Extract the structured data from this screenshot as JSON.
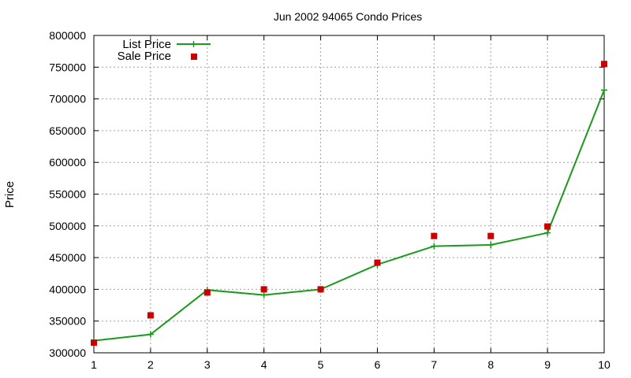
{
  "chart_data": {
    "type": "line",
    "title": "Jun 2002 94065 Condo Prices",
    "xlabel": "",
    "ylabel": "Price",
    "xlim": [
      1,
      10
    ],
    "ylim": [
      300000,
      800000
    ],
    "x_ticks": [
      1,
      2,
      3,
      4,
      5,
      6,
      7,
      8,
      9,
      10
    ],
    "y_ticks": [
      300000,
      350000,
      400000,
      450000,
      500000,
      550000,
      600000,
      650000,
      700000,
      750000,
      800000
    ],
    "grid": true,
    "legend_position": "top-left",
    "series": [
      {
        "name": "List Price",
        "style": "line-with-plus-markers",
        "color": "#1a9a1a",
        "x": [
          1,
          2,
          3,
          4,
          5,
          6,
          7,
          8,
          9,
          10
        ],
        "values": [
          319000,
          329000,
          399000,
          391000,
          400000,
          439000,
          468000,
          470000,
          489000,
          714000
        ]
      },
      {
        "name": "Sale Price",
        "style": "square-points",
        "color": "#cc0000",
        "x": [
          1,
          2,
          3,
          4,
          5,
          6,
          7,
          8,
          9,
          10
        ],
        "values": [
          316000,
          359000,
          395000,
          400000,
          400000,
          442000,
          484000,
          484000,
          499000,
          755000
        ]
      }
    ]
  }
}
